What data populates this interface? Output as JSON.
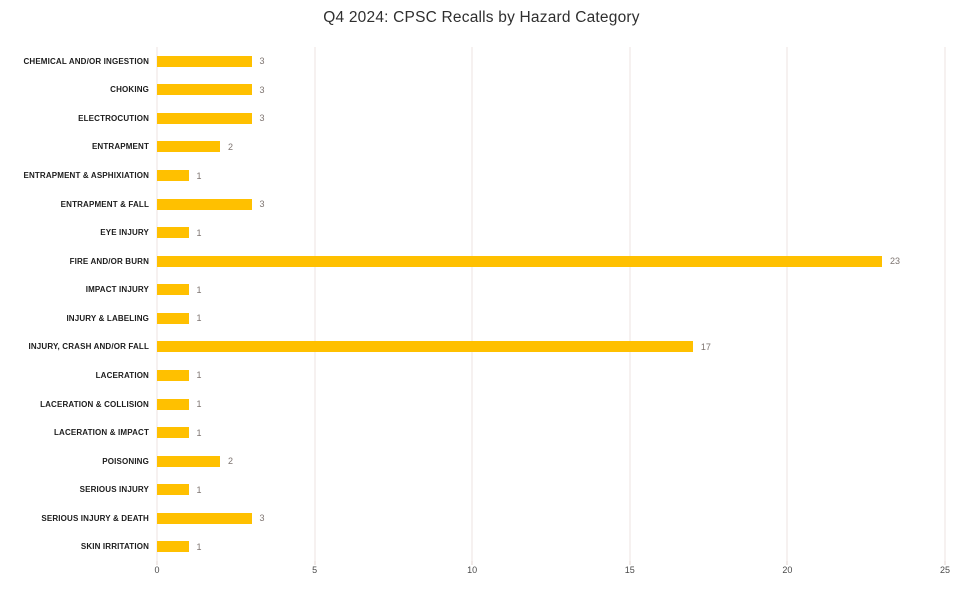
{
  "chart_data": {
    "type": "bar",
    "orientation": "horizontal",
    "title": "Q4 2024: CPSC Recalls by Hazard Category",
    "categories": [
      "CHEMICAL AND/OR INGESTION",
      "CHOKING",
      "ELECTROCUTION",
      "ENTRAPMENT",
      "ENTRAPMENT & ASPHIXIATION",
      "ENTRAPMENT & FALL",
      "EYE INJURY",
      "FIRE AND/OR BURN",
      "IMPACT INJURY",
      "INJURY & LABELING",
      "INJURY, CRASH AND/OR FALL",
      "LACERATION",
      "LACERATION & COLLISION",
      "LACERATION & IMPACT",
      "POISONING",
      "SERIOUS INJURY",
      "SERIOUS INJURY & DEATH",
      "SKIN IRRITATION"
    ],
    "values": [
      3,
      3,
      3,
      2,
      1,
      3,
      1,
      23,
      1,
      1,
      17,
      1,
      1,
      1,
      2,
      1,
      3,
      1
    ],
    "xlabel": "",
    "ylabel": "",
    "xlim": [
      0,
      25
    ],
    "xticks": [
      0,
      5,
      10,
      15,
      20,
      25
    ],
    "grid": true,
    "legend": false,
    "value_labels": true,
    "bar_color": "#FFC000"
  },
  "colors": {
    "background": "#ffffff",
    "bar": "#FFC000",
    "gridline": "#ede3e0",
    "title_text": "#2f2f2f",
    "category_text": "#1c1c1c",
    "value_text": "#7d7470",
    "tick_text": "#4a4a4a"
  }
}
